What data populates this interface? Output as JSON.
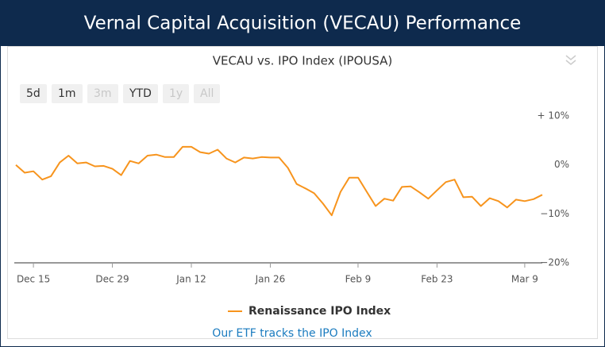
{
  "header": {
    "title": "Vernal Capital Acquisition (VECAU) Performance"
  },
  "range_buttons": [
    {
      "label": "5d",
      "enabled": true
    },
    {
      "label": "1m",
      "enabled": true
    },
    {
      "label": "3m",
      "enabled": false
    },
    {
      "label": "YTD",
      "enabled": true
    },
    {
      "label": "1y",
      "enabled": false
    },
    {
      "label": "All",
      "enabled": false
    }
  ],
  "chart_data": {
    "type": "line",
    "title": "VECAU vs. IPO Index (IPOUSA)",
    "categories": [
      null,
      null,
      "Dec 15",
      null,
      null,
      null,
      null,
      null,
      null,
      null,
      null,
      "Dec 29",
      null,
      null,
      null,
      null,
      null,
      null,
      null,
      null,
      "Jan 12",
      null,
      null,
      null,
      null,
      null,
      null,
      null,
      null,
      "Jan 26",
      null,
      null,
      null,
      null,
      null,
      null,
      null,
      null,
      null,
      "Feb 9",
      null,
      null,
      null,
      null,
      null,
      null,
      null,
      null,
      "Feb 23",
      null,
      null,
      null,
      null,
      null,
      null,
      null,
      null,
      null,
      "Mar 9",
      null,
      null
    ],
    "series": [
      {
        "name": "Renaissance IPO Index",
        "color": "#f7941d",
        "values": [
          0,
          -1.6,
          -1.3,
          -3.0,
          -2.3,
          0.5,
          1.9,
          0.3,
          0.5,
          -0.3,
          -0.2,
          -0.8,
          -2.1,
          0.8,
          0.3,
          1.9,
          2.1,
          1.6,
          1.6,
          3.7,
          3.7,
          2.6,
          2.3,
          3.1,
          1.3,
          0.5,
          1.5,
          1.3,
          1.6,
          1.5,
          1.5,
          -0.6,
          -3.9,
          -4.8,
          -5.8,
          -7.9,
          -10.3,
          -5.5,
          -2.6,
          -2.6,
          -5.5,
          -8.4,
          -6.9,
          -7.3,
          -4.5,
          -4.4,
          -5.6,
          -6.9,
          -5.2,
          -3.5,
          -3.0,
          -6.6,
          -6.5,
          -8.4,
          -6.8,
          -7.4,
          -8.7,
          -7.1,
          -7.4,
          -7.0,
          -6.1
        ]
      }
    ],
    "ylim": [
      -20,
      10
    ],
    "yticks": [
      {
        "value": -20,
        "label": "−20%"
      },
      {
        "value": -10,
        "label": "−10%"
      },
      {
        "value": 0,
        "label": "0%"
      },
      {
        "value": 10,
        "label": "+ 10%"
      }
    ],
    "grid": false,
    "legend": "bottom"
  },
  "footer": {
    "link": "Our ETF tracks the IPO Index"
  }
}
